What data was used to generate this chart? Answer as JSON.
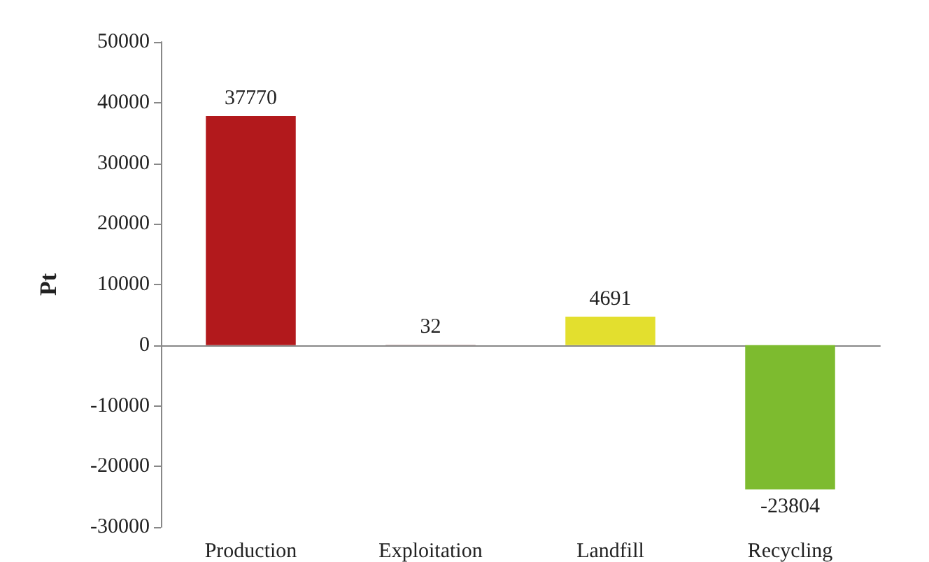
{
  "chart_data": {
    "type": "bar",
    "ylabel": "Pt",
    "categories": [
      "Production",
      "Exploitation",
      "Landfill",
      "Recycling"
    ],
    "values": [
      37770,
      32,
      4691,
      -23804
    ],
    "colors": [
      "#b2191c",
      "#6b1e1e",
      "#e3df2e",
      "#7dbb2f"
    ],
    "ylim": [
      -30000,
      50000
    ],
    "yticks": [
      -30000,
      -20000,
      -10000,
      0,
      10000,
      20000,
      30000,
      40000,
      50000
    ],
    "data_labels": true
  }
}
